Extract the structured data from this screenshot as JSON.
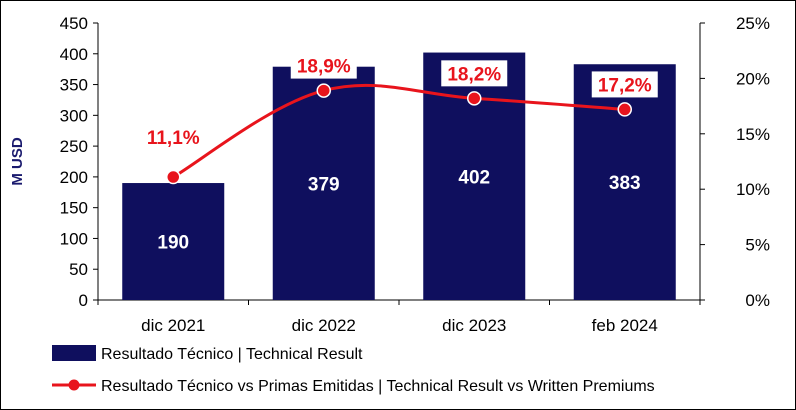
{
  "chart_data": {
    "type": "bar",
    "categories": [
      "dic 2021",
      "dic 2022",
      "dic 2023",
      "feb 2024"
    ],
    "series": [
      {
        "name": "Resultado Técnico | Technical Result",
        "type": "bar",
        "axis": "left",
        "values": [
          190,
          379,
          402,
          383
        ],
        "labels": [
          "190",
          "379",
          "402",
          "383"
        ],
        "color": "#0f0f5e"
      },
      {
        "name": "Resultado Técnico vs Primas Emitidas | Technical Result vs Written Premiums",
        "type": "line",
        "axis": "right",
        "values": [
          11.1,
          18.9,
          18.2,
          17.2
        ],
        "labels": [
          "11,1%",
          "18,9%",
          "18,2%",
          "17,2%"
        ],
        "color": "#e8141c"
      }
    ],
    "ylabel": "M USD",
    "ylim": [
      0,
      450
    ],
    "y_ticks": [
      "0",
      "50",
      "100",
      "150",
      "200",
      "250",
      "300",
      "350",
      "400",
      "450"
    ],
    "y2lim": [
      0,
      25
    ],
    "y2_ticks": [
      "0%",
      "5%",
      "10%",
      "15%",
      "20%",
      "25%"
    ],
    "grid": false,
    "legend_position": "bottom"
  }
}
